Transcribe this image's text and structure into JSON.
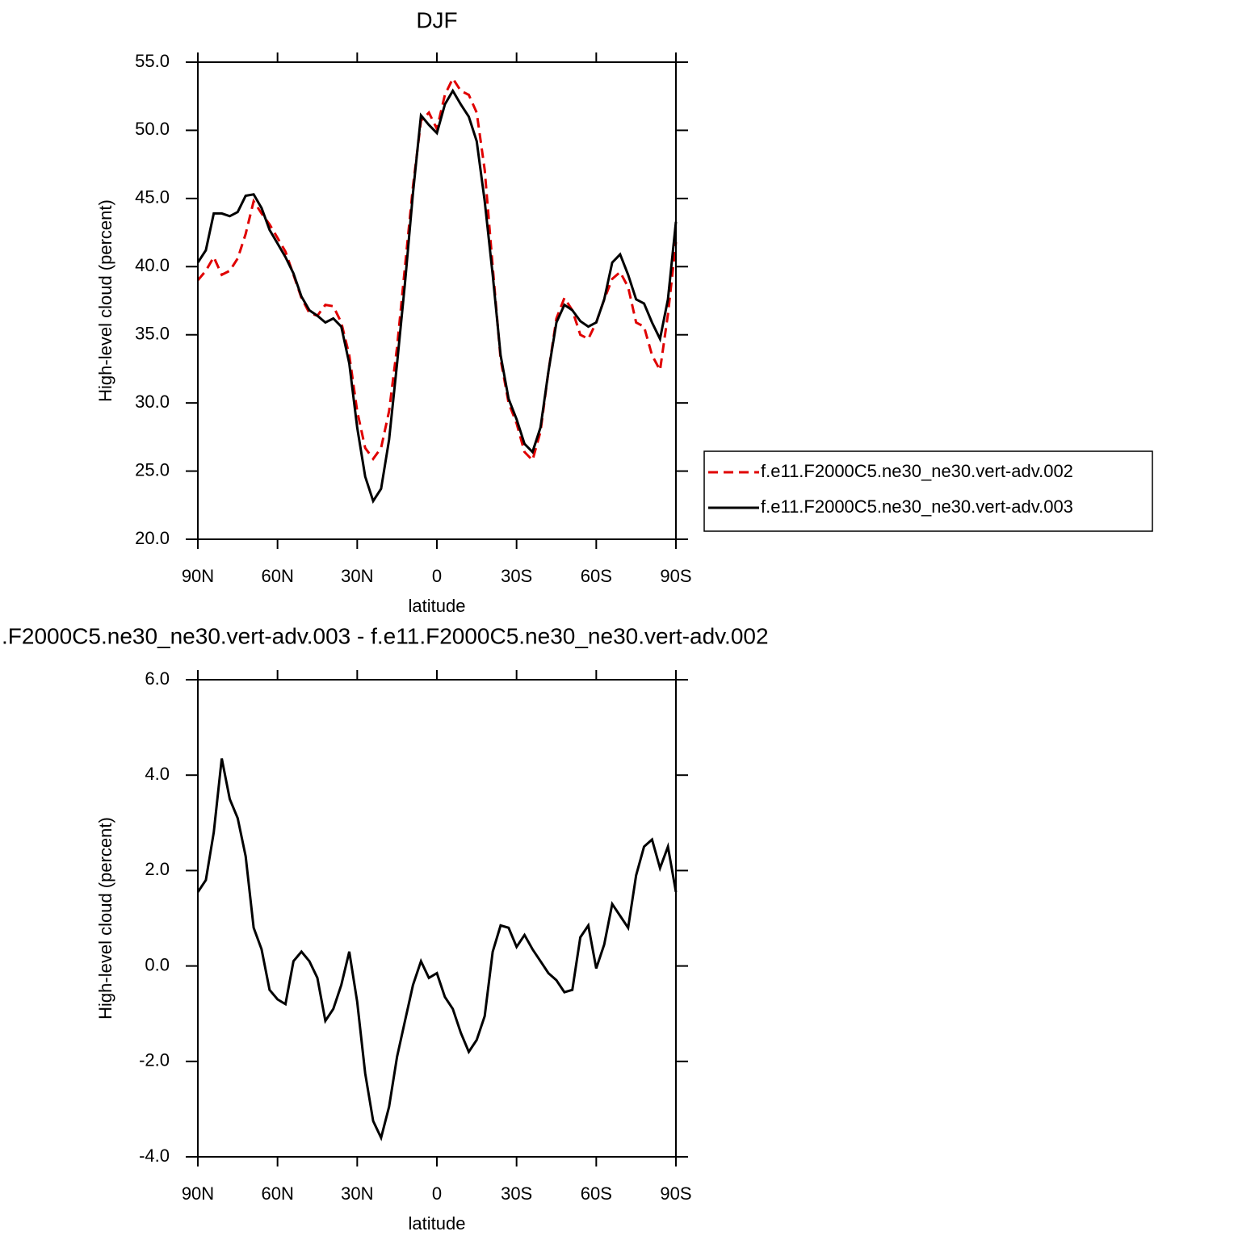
{
  "chart_data": [
    {
      "type": "line",
      "title": "DJF",
      "xlabel": "latitude",
      "ylabel": "High-level cloud (percent)",
      "x": [
        90,
        87,
        84,
        81,
        78,
        75,
        72,
        69,
        66,
        63,
        60,
        57,
        54,
        51,
        48,
        45,
        42,
        39,
        36,
        33,
        30,
        27,
        24,
        21,
        18,
        15,
        12,
        9,
        6,
        3,
        0,
        -3,
        -6,
        -9,
        -12,
        -15,
        -18,
        -21,
        -24,
        -27,
        -30,
        -33,
        -36,
        -39,
        -42,
        -45,
        -48,
        -51,
        -54,
        -57,
        -60,
        -63,
        -66,
        -69,
        -72,
        -75,
        -78,
        -81,
        -84,
        -87,
        -90
      ],
      "xlim": [
        90,
        -90
      ],
      "xticks": [
        {
          "value": 90,
          "label": "90N"
        },
        {
          "value": 60,
          "label": "60N"
        },
        {
          "value": 30,
          "label": "30N"
        },
        0,
        {
          "value": -30,
          "label": "30S"
        },
        {
          "value": -60,
          "label": "60S"
        },
        {
          "value": -90,
          "label": "90S"
        }
      ],
      "ylim": [
        20,
        55
      ],
      "yticks": [
        {
          "value": 20,
          "label": "20.0"
        },
        {
          "value": 25,
          "label": "25.0"
        },
        {
          "value": 30,
          "label": "30.0"
        },
        {
          "value": 35,
          "label": "35.0"
        },
        {
          "value": 40,
          "label": "40.0"
        },
        {
          "value": 45,
          "label": "45.0"
        },
        {
          "value": 50,
          "label": "50.0"
        },
        {
          "value": 55,
          "label": "55.0"
        }
      ],
      "legend": "right",
      "series": [
        {
          "name": "f.e11.F2000C5.ne30_ne30.vert-adv.002",
          "color": "#e00000",
          "linestyle": "dashed",
          "values": [
            39.0,
            39.7,
            40.7,
            39.4,
            39.7,
            40.6,
            42.4,
            44.8,
            43.9,
            43.1,
            42.1,
            41.1,
            39.4,
            37.7,
            36.6,
            36.4,
            37.2,
            37.1,
            35.9,
            33.5,
            29.4,
            26.7,
            25.9,
            26.7,
            29.4,
            34.1,
            40.0,
            45.9,
            50.7,
            51.3,
            50.1,
            52.6,
            53.8,
            52.9,
            52.6,
            51.3,
            47.1,
            40.0,
            33.2,
            30.0,
            28.5,
            26.4,
            25.8,
            27.9,
            32.3,
            36.2,
            37.7,
            36.8,
            35.0,
            34.7,
            35.9,
            37.6,
            39.1,
            39.6,
            38.5,
            35.9,
            35.6,
            33.5,
            32.4,
            36.5,
            41.8
          ]
        },
        {
          "name": "f.e11.F2000C5.ne30_ne30.vert-adv.003",
          "color": "#000000",
          "linestyle": "solid",
          "values": [
            40.3,
            41.2,
            43.9,
            43.9,
            43.7,
            44.0,
            45.2,
            45.3,
            44.3,
            42.7,
            41.7,
            40.7,
            39.5,
            37.8,
            36.8,
            36.4,
            35.9,
            36.2,
            35.6,
            32.9,
            28.2,
            24.6,
            22.8,
            23.7,
            27.3,
            32.9,
            38.8,
            45.4,
            51.1,
            50.4,
            49.8,
            51.9,
            52.9,
            51.9,
            51.0,
            49.2,
            44.8,
            39.4,
            33.5,
            30.3,
            28.8,
            27.0,
            26.4,
            28.2,
            32.3,
            35.9,
            37.2,
            36.8,
            36.0,
            35.6,
            35.9,
            37.6,
            40.3,
            40.9,
            39.4,
            37.6,
            37.3,
            35.9,
            34.7,
            37.6,
            43.3
          ]
        }
      ]
    },
    {
      "type": "line",
      "title": ".F2000C5.ne30_ne30.vert-adv.003 - f.e11.F2000C5.ne30_ne30.vert-adv.002",
      "xlabel": "latitude",
      "ylabel": "High-level cloud (percent)",
      "x": [
        90,
        87,
        84,
        81,
        78,
        75,
        72,
        69,
        66,
        63,
        60,
        57,
        54,
        51,
        48,
        45,
        42,
        39,
        36,
        33,
        30,
        27,
        24,
        21,
        18,
        15,
        12,
        9,
        6,
        3,
        0,
        -3,
        -6,
        -9,
        -12,
        -15,
        -18,
        -21,
        -24,
        -27,
        -30,
        -33,
        -36,
        -39,
        -42,
        -45,
        -48,
        -51,
        -54,
        -57,
        -60,
        -63,
        -66,
        -69,
        -72,
        -75,
        -78,
        -81,
        -84,
        -87,
        -90
      ],
      "xlim": [
        90,
        -90
      ],
      "xticks": [
        {
          "value": 90,
          "label": "90N"
        },
        {
          "value": 60,
          "label": "60N"
        },
        {
          "value": 30,
          "label": "30N"
        },
        0,
        {
          "value": -30,
          "label": "30S"
        },
        {
          "value": -60,
          "label": "60S"
        },
        {
          "value": -90,
          "label": "90S"
        }
      ],
      "ylim": [
        -4,
        6
      ],
      "yticks": [
        {
          "value": -4,
          "label": "-4.0"
        },
        {
          "value": -2,
          "label": "-2.0"
        },
        {
          "value": 0,
          "label": "0.0"
        },
        {
          "value": 2,
          "label": "2.0"
        },
        {
          "value": 4,
          "label": "4.0"
        },
        {
          "value": 6,
          "label": "6.0"
        }
      ],
      "color": "#000000",
      "values": [
        1.55,
        1.8,
        2.8,
        4.35,
        3.5,
        3.1,
        2.3,
        0.8,
        0.35,
        -0.5,
        -0.7,
        -0.8,
        0.1,
        0.3,
        0.1,
        -0.25,
        -1.15,
        -0.9,
        -0.4,
        0.3,
        -0.75,
        -2.25,
        -3.25,
        -3.6,
        -2.95,
        -1.9,
        -1.15,
        -0.4,
        0.1,
        -0.25,
        -0.15,
        -0.65,
        -0.9,
        -1.4,
        -1.8,
        -1.55,
        -1.05,
        0.3,
        0.85,
        0.8,
        0.4,
        0.65,
        0.35,
        0.1,
        -0.15,
        -0.3,
        -0.55,
        -0.5,
        0.6,
        0.85,
        -0.05,
        0.45,
        1.3,
        1.05,
        0.8,
        1.9,
        2.5,
        2.65,
        2.05,
        2.5,
        1.55
      ]
    }
  ]
}
